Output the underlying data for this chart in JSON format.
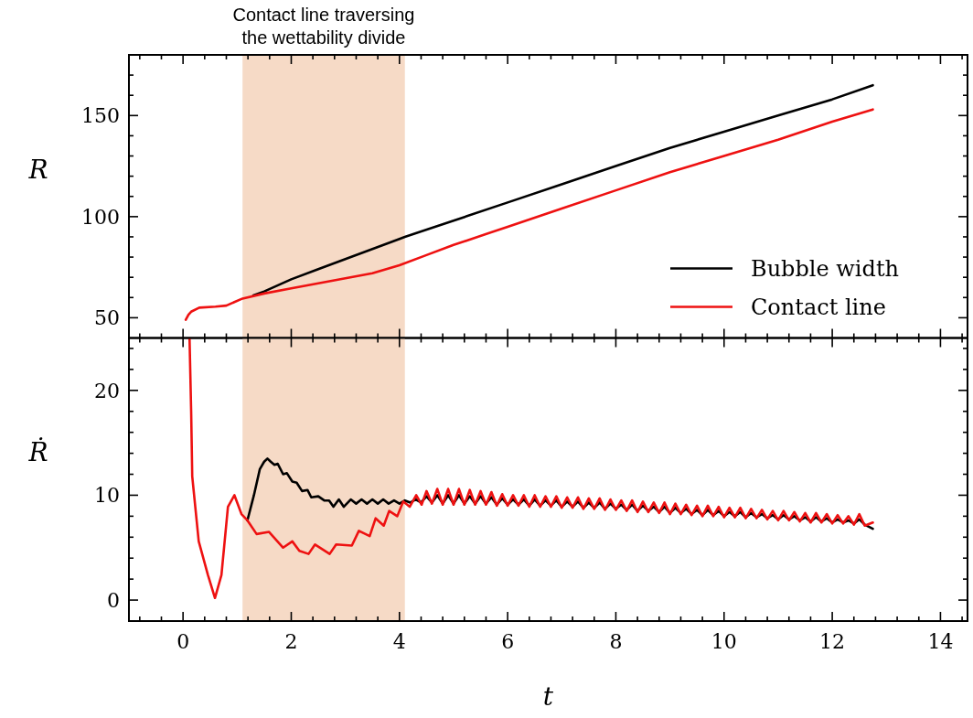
{
  "chart_data": [
    {
      "type": "line",
      "ylabel": "R",
      "legend": "bottom right",
      "tick_labels": "y",
      "xlim": [
        -1,
        14.5
      ],
      "xticks": [
        {
          "value": -0.8,
          "label": null
        },
        {
          "value": -0.4,
          "label": null
        },
        {
          "value": 0,
          "label": null
        },
        {
          "value": 0.4,
          "label": null
        },
        {
          "value": 0.8,
          "label": null
        },
        {
          "value": 1.2,
          "label": null
        },
        {
          "value": 1.6,
          "label": null
        },
        {
          "value": 2,
          "label": null
        },
        {
          "value": 2.4,
          "label": null
        },
        {
          "value": 2.8,
          "label": null
        },
        {
          "value": 3.2,
          "label": null
        },
        {
          "value": 3.6,
          "label": null
        },
        {
          "value": 4,
          "label": null
        },
        {
          "value": 4.4,
          "label": null
        },
        {
          "value": 4.8,
          "label": null
        },
        {
          "value": 5.2,
          "label": null
        },
        {
          "value": 5.6,
          "label": null
        },
        {
          "value": 6,
          "label": null
        },
        {
          "value": 6.4,
          "label": null
        },
        {
          "value": 6.8,
          "label": null
        },
        {
          "value": 7.2,
          "label": null
        },
        {
          "value": 7.6,
          "label": null
        },
        {
          "value": 8,
          "label": null
        },
        {
          "value": 8.4,
          "label": null
        },
        {
          "value": 8.8,
          "label": null
        },
        {
          "value": 9.2,
          "label": null
        },
        {
          "value": 9.6,
          "label": null
        },
        {
          "value": 10,
          "label": null
        },
        {
          "value": 10.4,
          "label": null
        },
        {
          "value": 10.8,
          "label": null
        },
        {
          "value": 11.2,
          "label": null
        },
        {
          "value": 11.6,
          "label": null
        },
        {
          "value": 12,
          "label": null
        },
        {
          "value": 12.4,
          "label": null
        },
        {
          "value": 12.8,
          "label": null
        },
        {
          "value": 13.2,
          "label": null
        },
        {
          "value": 13.6,
          "label": null
        },
        {
          "value": 14,
          "label": null
        },
        {
          "value": 14.4,
          "label": null
        }
      ],
      "ylim": [
        40,
        180
      ],
      "yticks": [
        {
          "value": 50,
          "label": "50"
        },
        {
          "value": 60,
          "label": null
        },
        {
          "value": 70,
          "label": null
        },
        {
          "value": 80,
          "label": null
        },
        {
          "value": 90,
          "label": null
        },
        {
          "value": 100,
          "label": "100"
        },
        {
          "value": 110,
          "label": null
        },
        {
          "value": 120,
          "label": null
        },
        {
          "value": 130,
          "label": null
        },
        {
          "value": 140,
          "label": null
        },
        {
          "value": 150,
          "label": "150"
        },
        {
          "value": 160,
          "label": null
        },
        {
          "value": 170,
          "label": null
        }
      ],
      "bands": [
        {
          "axis": "x",
          "from": 1.1,
          "to": 4.1,
          "label": "Contact line traversing the wettability divide",
          "color": "#f6dac6"
        }
      ],
      "series": [
        {
          "name": "Bubble width",
          "color": "#000000",
          "x": [
            1.3,
            1.5,
            2,
            2.5,
            3,
            3.5,
            4,
            4.1,
            5,
            6,
            7,
            8,
            9,
            10,
            11,
            12,
            12.75
          ],
          "values": [
            61,
            63,
            69,
            74,
            79,
            84,
            89,
            90,
            98,
            107,
            116,
            125,
            134,
            142,
            150,
            158,
            165
          ]
        },
        {
          "name": "Contact line",
          "color": "#ee1111",
          "x": [
            0.05,
            0.1,
            0.15,
            0.3,
            0.6,
            0.8,
            1.1,
            1.5,
            2,
            2.5,
            3,
            3.5,
            4,
            4.5,
            5,
            6,
            7,
            8,
            9,
            10,
            11,
            12,
            12.75
          ],
          "values": [
            49,
            51.5,
            53,
            55,
            55.5,
            56,
            59.5,
            62,
            64.5,
            67,
            69.5,
            72,
            76,
            81,
            86,
            95,
            104,
            113,
            122,
            130,
            138,
            147,
            153
          ]
        }
      ]
    },
    {
      "type": "line",
      "ylabel": "Ṙ",
      "xlabel": "t",
      "xlim": [
        -1,
        14.5
      ],
      "xticks": [
        {
          "value": -0.8,
          "label": null
        },
        {
          "value": -0.4,
          "label": null
        },
        {
          "value": 0,
          "label": "0"
        },
        {
          "value": 0.4,
          "label": null
        },
        {
          "value": 0.8,
          "label": null
        },
        {
          "value": 1.2,
          "label": null
        },
        {
          "value": 1.6,
          "label": null
        },
        {
          "value": 2,
          "label": "2"
        },
        {
          "value": 2.4,
          "label": null
        },
        {
          "value": 2.8,
          "label": null
        },
        {
          "value": 3.2,
          "label": null
        },
        {
          "value": 3.6,
          "label": null
        },
        {
          "value": 4,
          "label": "4"
        },
        {
          "value": 4.4,
          "label": null
        },
        {
          "value": 4.8,
          "label": null
        },
        {
          "value": 5.2,
          "label": null
        },
        {
          "value": 5.6,
          "label": null
        },
        {
          "value": 6,
          "label": "6"
        },
        {
          "value": 6.4,
          "label": null
        },
        {
          "value": 6.8,
          "label": null
        },
        {
          "value": 7.2,
          "label": null
        },
        {
          "value": 7.6,
          "label": null
        },
        {
          "value": 8,
          "label": "8"
        },
        {
          "value": 8.4,
          "label": null
        },
        {
          "value": 8.8,
          "label": null
        },
        {
          "value": 9.2,
          "label": null
        },
        {
          "value": 9.6,
          "label": null
        },
        {
          "value": 10,
          "label": "10"
        },
        {
          "value": 10.4,
          "label": null
        },
        {
          "value": 10.8,
          "label": null
        },
        {
          "value": 11.2,
          "label": null
        },
        {
          "value": 11.6,
          "label": null
        },
        {
          "value": 12,
          "label": "12"
        },
        {
          "value": 12.4,
          "label": null
        },
        {
          "value": 12.8,
          "label": null
        },
        {
          "value": 13.2,
          "label": null
        },
        {
          "value": 13.6,
          "label": null
        },
        {
          "value": 14,
          "label": "14"
        },
        {
          "value": 14.4,
          "label": null
        }
      ],
      "ylim": [
        -2,
        25
      ],
      "yticks": [
        {
          "value": 0,
          "label": "0"
        },
        {
          "value": 2,
          "label": null
        },
        {
          "value": 4,
          "label": null
        },
        {
          "value": 6,
          "label": null
        },
        {
          "value": 8,
          "label": null
        },
        {
          "value": 10,
          "label": "10"
        },
        {
          "value": 12,
          "label": null
        },
        {
          "value": 14,
          "label": null
        },
        {
          "value": 16,
          "label": null
        },
        {
          "value": 18,
          "label": null
        },
        {
          "value": 20,
          "label": "20"
        },
        {
          "value": 22,
          "label": null
        },
        {
          "value": 24,
          "label": null
        }
      ],
      "bands": [
        {
          "axis": "x",
          "from": 1.1,
          "to": 4.1,
          "color": "#f6dac6"
        }
      ],
      "series": [
        {
          "color": "#000000",
          "x": [
            1.19,
            1.31,
            1.42,
            1.5,
            1.56,
            1.62,
            1.69,
            1.75,
            1.85,
            1.92,
            2.02,
            2.1,
            2.2,
            2.3,
            2.37,
            2.5,
            2.61,
            2.7,
            2.78,
            2.88,
            2.97,
            3.1,
            3.2,
            3.3,
            3.4,
            3.5,
            3.6,
            3.7,
            3.8,
            3.9,
            4.0,
            4.1,
            4.2,
            4.3,
            4.4,
            4.5,
            4.6,
            4.7,
            4.8,
            4.9,
            5.0,
            5.1,
            5.2,
            5.3,
            5.4,
            5.5,
            5.6,
            5.7,
            5.8,
            5.9,
            6.0,
            6.1,
            6.2,
            6.3,
            6.4,
            6.5,
            6.6,
            6.7,
            6.8,
            6.9,
            7.0,
            7.1,
            7.2,
            7.3,
            7.4,
            7.5,
            7.6,
            7.7,
            7.8,
            7.9,
            8.0,
            8.1,
            8.2,
            8.3,
            8.4,
            8.5,
            8.6,
            8.7,
            8.8,
            8.9,
            9.0,
            9.1,
            9.2,
            9.3,
            9.4,
            9.5,
            9.6,
            9.7,
            9.8,
            9.9,
            10.0,
            10.1,
            10.2,
            10.3,
            10.4,
            10.5,
            10.6,
            10.7,
            10.8,
            10.9,
            11.0,
            11.1,
            11.2,
            11.3,
            11.4,
            11.5,
            11.6,
            11.7,
            11.8,
            11.9,
            12.0,
            12.1,
            12.2,
            12.3,
            12.4,
            12.5,
            12.6,
            12.75
          ],
          "values": [
            7.6,
            10,
            12.5,
            13.2,
            13.5,
            13.2,
            12.9,
            13.0,
            12.0,
            12.1,
            11.3,
            11.2,
            10.4,
            10.5,
            9.8,
            9.9,
            9.5,
            9.5,
            8.9,
            9.6,
            8.9,
            9.6,
            9.2,
            9.6,
            9.2,
            9.6,
            9.2,
            9.6,
            9.2,
            9.5,
            9.2,
            9.5,
            9.3,
            9.6,
            9.3,
            9.9,
            9.3,
            10.0,
            9.2,
            10.0,
            9.2,
            10.0,
            9.2,
            9.9,
            9.2,
            9.9,
            9.2,
            9.8,
            9.1,
            9.7,
            9.1,
            9.6,
            9.1,
            9.6,
            9.0,
            9.6,
            9.0,
            9.5,
            9.0,
            9.5,
            8.9,
            9.4,
            8.9,
            9.4,
            8.8,
            9.3,
            8.8,
            9.3,
            8.7,
            9.2,
            8.7,
            9.1,
            8.6,
            9.1,
            8.5,
            9.0,
            8.5,
            8.9,
            8.4,
            8.9,
            8.3,
            8.8,
            8.3,
            8.7,
            8.2,
            8.6,
            8.1,
            8.6,
            8.1,
            8.5,
            8.0,
            8.4,
            8.0,
            8.4,
            7.9,
            8.3,
            7.9,
            8.2,
            7.8,
            8.1,
            7.7,
            8.1,
            7.7,
            8.0,
            7.6,
            7.9,
            7.5,
            7.9,
            7.5,
            7.8,
            7.4,
            7.7,
            7.4,
            7.6,
            7.3,
            7.7,
            7.2,
            6.8
          ]
        },
        {
          "color": "#ee1111",
          "x": [
            0.12,
            0.15,
            0.17,
            0.29,
            0.46,
            0.59,
            0.71,
            0.83,
            0.95,
            1.08,
            1.19,
            1.36,
            1.59,
            1.85,
            2.02,
            2.15,
            2.32,
            2.44,
            2.71,
            2.83,
            3.12,
            3.25,
            3.45,
            3.56,
            3.71,
            3.81,
            3.96,
            4.07,
            4.19,
            4.31,
            4.41,
            4.5,
            4.6,
            4.7,
            4.8,
            4.9,
            5.0,
            5.1,
            5.2,
            5.3,
            5.4,
            5.5,
            5.6,
            5.7,
            5.8,
            5.9,
            6.0,
            6.1,
            6.2,
            6.3,
            6.4,
            6.5,
            6.6,
            6.7,
            6.8,
            6.9,
            7.0,
            7.1,
            7.2,
            7.3,
            7.4,
            7.5,
            7.6,
            7.7,
            7.8,
            7.9,
            8.0,
            8.1,
            8.2,
            8.3,
            8.4,
            8.5,
            8.6,
            8.7,
            8.8,
            8.9,
            9.0,
            9.1,
            9.2,
            9.3,
            9.4,
            9.5,
            9.6,
            9.7,
            9.8,
            9.9,
            10.0,
            10.1,
            10.2,
            10.3,
            10.4,
            10.5,
            10.6,
            10.7,
            10.8,
            10.9,
            11.0,
            11.1,
            11.2,
            11.3,
            11.4,
            11.5,
            11.6,
            11.7,
            11.8,
            11.9,
            12.0,
            12.1,
            12.2,
            12.3,
            12.4,
            12.5,
            12.6,
            12.75
          ],
          "values": [
            25,
            18,
            11.8,
            5.6,
            2.4,
            0.2,
            2.4,
            8.9,
            10,
            8.2,
            7.6,
            6.3,
            6.5,
            5.0,
            5.6,
            4.7,
            4.4,
            5.3,
            4.4,
            5.3,
            5.2,
            6.6,
            6.1,
            7.8,
            7.1,
            8.5,
            8.0,
            9.4,
            8.9,
            10.0,
            9.1,
            10.4,
            9.2,
            10.6,
            9.1,
            10.6,
            9.1,
            10.6,
            9.1,
            10.5,
            9.1,
            10.4,
            9.1,
            10.3,
            9.0,
            10.1,
            9.0,
            10.0,
            9.0,
            10.0,
            8.9,
            10.0,
            8.9,
            9.9,
            8.9,
            9.9,
            8.8,
            9.8,
            8.8,
            9.8,
            8.7,
            9.7,
            8.7,
            9.7,
            8.6,
            9.6,
            8.6,
            9.5,
            8.5,
            9.5,
            8.4,
            9.4,
            8.4,
            9.3,
            8.3,
            9.3,
            8.2,
            9.2,
            8.2,
            9.1,
            8.1,
            9.0,
            8.0,
            9.0,
            8.0,
            8.9,
            7.9,
            8.8,
            7.9,
            8.8,
            7.8,
            8.7,
            7.8,
            8.6,
            7.7,
            8.5,
            7.6,
            8.5,
            7.6,
            8.4,
            7.5,
            8.3,
            7.4,
            8.3,
            7.4,
            8.2,
            7.3,
            8.1,
            7.3,
            8.0,
            7.2,
            8.2,
            7.1,
            7.4
          ]
        }
      ]
    }
  ]
}
